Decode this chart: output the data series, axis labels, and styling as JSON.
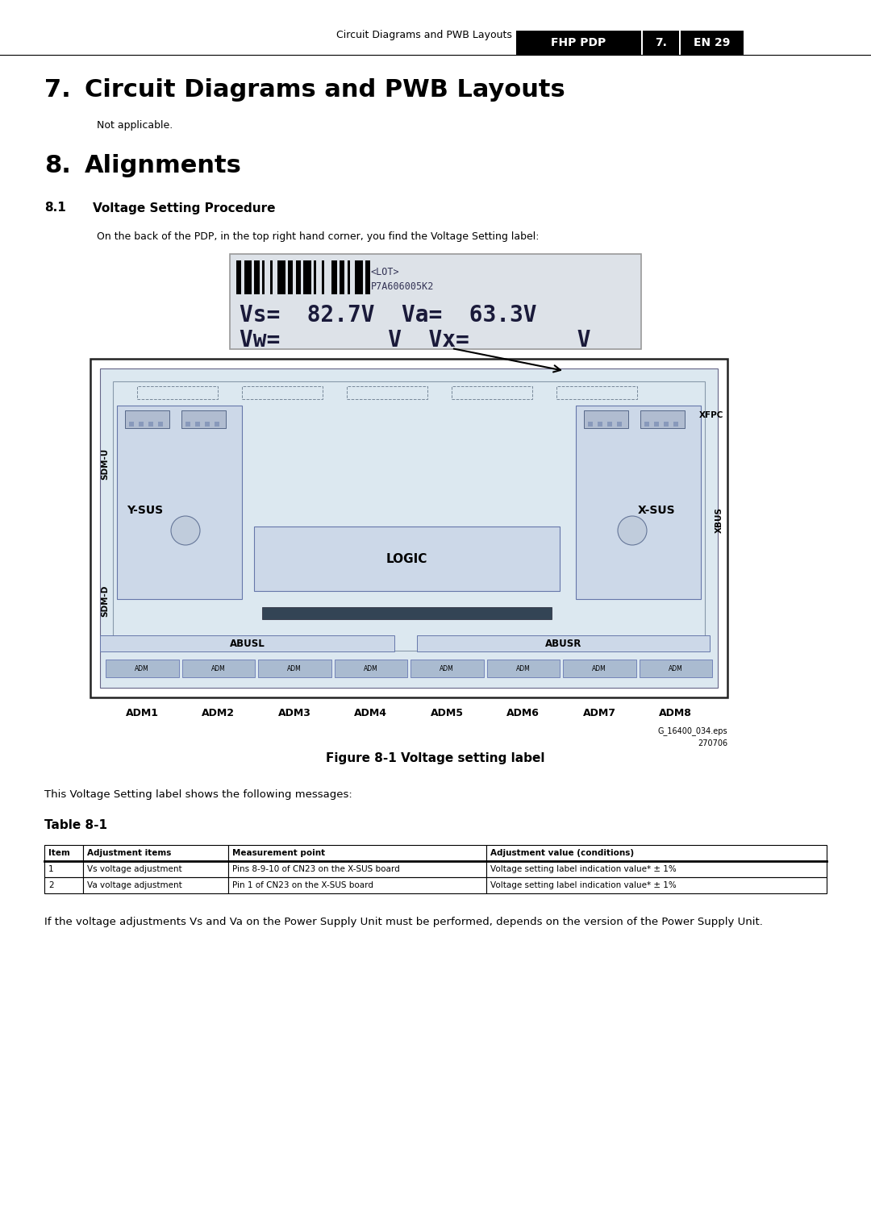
{
  "bg_color": "#ffffff",
  "header_text": "Circuit Diagrams and PWB Layouts",
  "header_tab1": "FHP PDP",
  "header_tab2": "7.",
  "header_tab3": "EN 29",
  "section7_num": "7.",
  "section7_heading": "Circuit Diagrams and PWB Layouts",
  "section7_body": "Not applicable.",
  "section8_num": "8.",
  "section8_heading": "Alignments",
  "section81_num": "8.1",
  "section81_heading": "Voltage Setting Procedure",
  "section81_body": "On the back of the PDP, in the top right hand corner, you find the Voltage Setting label:",
  "label_lot": "<LOT>",
  "label_lot_val": "P7A606005K2",
  "label_vs": "Vs=  82.7V  Va=  63.3V",
  "label_vw": "Vw=        V  Vx=        V",
  "figure_caption": "Figure 8-1 Voltage setting label",
  "figure_ref": "G_16400_034.eps",
  "figure_ref2": "270706",
  "table_intro": "This Voltage Setting label shows the following messages:",
  "table_caption": "Table 8-1",
  "table_headers": [
    "Item",
    "Adjustment items",
    "Measurement point",
    "Adjustment value (conditions)"
  ],
  "table_rows": [
    [
      "1",
      "Vs voltage adjustment",
      "Pins 8-9-10 of CN23 on the X-SUS board",
      "Voltage setting label indication value* ± 1%"
    ],
    [
      "2",
      "Va voltage adjustment",
      "Pin 1 of CN23 on the X-SUS board",
      "Voltage setting label indication value* ± 1%"
    ]
  ],
  "final_note": "If the voltage adjustments Vs and Va on the Power Supply Unit must be performed, depends on the version of the Power Supply Unit."
}
